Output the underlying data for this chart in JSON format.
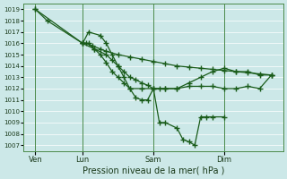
{
  "xlabel": "Pression niveau de la mer( hPa )",
  "ylim": [
    1006.5,
    1019.5
  ],
  "yticks": [
    1007,
    1008,
    1009,
    1010,
    1011,
    1012,
    1013,
    1014,
    1015,
    1016,
    1017,
    1018,
    1019
  ],
  "bg_color": "#cce8e8",
  "line_color": "#1a5c1a",
  "grid_color": "#b8d8d8",
  "xtick_labels": [
    "Ven",
    "Lun",
    "Sam",
    "Dim"
  ],
  "xtick_positions": [
    1,
    5,
    11,
    17
  ],
  "xlim": [
    0,
    22
  ],
  "line1_x": [
    1,
    2,
    5,
    5.3,
    5.8,
    6.5,
    7,
    8,
    9,
    10,
    11,
    12,
    13,
    14,
    15,
    16,
    17,
    18,
    19,
    20,
    21
  ],
  "line1_y": [
    1019,
    1018,
    1016,
    1016,
    1015.8,
    1015.5,
    1015.3,
    1015.0,
    1014.8,
    1014.6,
    1014.4,
    1014.2,
    1014.0,
    1013.9,
    1013.8,
    1013.7,
    1013.6,
    1013.5,
    1013.4,
    1013.3,
    1013.2
  ],
  "line2_x": [
    1,
    5,
    5.5,
    6,
    6.5,
    7,
    7.5,
    8,
    8.5,
    9,
    10,
    11,
    12,
    13,
    14,
    15,
    16,
    17,
    18,
    19,
    20,
    21
  ],
  "line2_y": [
    1019,
    1016,
    1016,
    1015.5,
    1015,
    1014.3,
    1013.5,
    1013,
    1012.5,
    1012,
    1012,
    1012,
    1012,
    1012,
    1012.2,
    1012.2,
    1012.2,
    1012,
    1012,
    1012.2,
    1012,
    1013.2
  ],
  "line3_x": [
    5,
    5.5,
    6.5,
    7,
    7.5,
    8,
    8.5,
    9,
    9.5,
    10,
    10.5,
    11,
    11.5,
    12,
    13,
    13.5,
    14,
    14.5,
    15,
    15.5,
    16,
    17
  ],
  "line3_y": [
    1016,
    1017,
    1016.7,
    1016,
    1015,
    1014,
    1013,
    1012,
    1011.2,
    1011,
    1011,
    1012,
    1009,
    1009,
    1008.5,
    1007.5,
    1007.3,
    1007,
    1009.5,
    1009.5,
    1009.5,
    1009.5
  ],
  "line4_x": [
    5,
    6,
    7,
    7.5,
    8,
    8.5,
    9,
    9.5,
    10,
    10.5,
    11,
    11.5,
    12,
    13,
    14,
    15,
    16,
    17,
    18,
    19,
    20,
    21
  ],
  "line4_y": [
    1016,
    1015.5,
    1015,
    1014.5,
    1014,
    1013.5,
    1013,
    1012.8,
    1012.5,
    1012.3,
    1012,
    1012,
    1012,
    1012,
    1012.5,
    1013,
    1013.5,
    1013.8,
    1013.5,
    1013.5,
    1013.2,
    1013.2
  ]
}
